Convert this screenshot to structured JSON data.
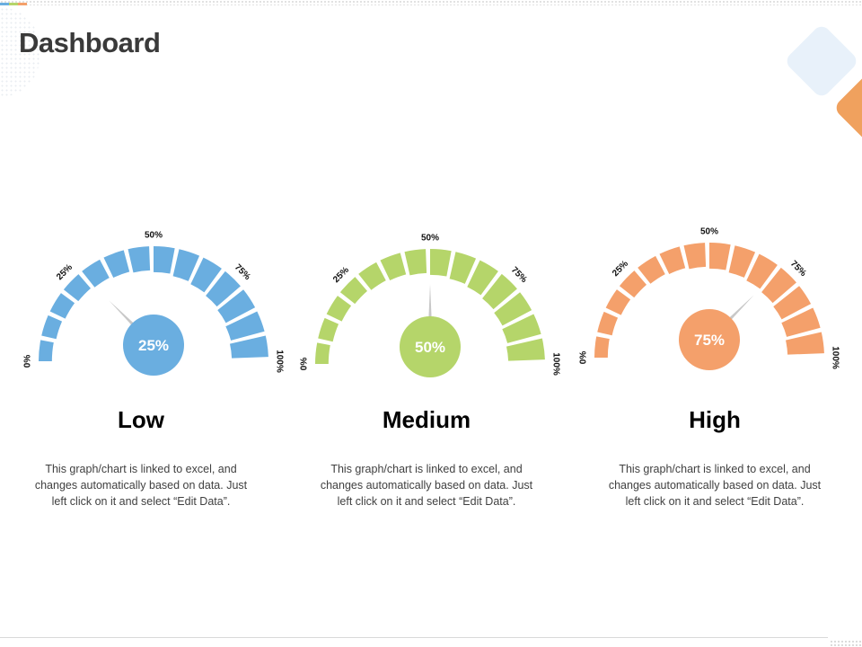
{
  "page": {
    "title": "Dashboard"
  },
  "colors": {
    "blue": "#6aaee0",
    "green": "#b5d56a",
    "orange": "#f4a06b",
    "needle": "#c8c8c8",
    "title": "#3a3a3a"
  },
  "chart_data": [
    {
      "type": "gauge",
      "range": [
        0,
        100
      ],
      "value": 25,
      "value_label": "25%",
      "title": "Low",
      "tick_labels": [
        "0%",
        "25%",
        "50%",
        "75%",
        "100%"
      ],
      "color": "#6aaee0",
      "description": "This graph/chart is linked to excel, and changes automatically based on data. Just left click on it and select “Edit Data”."
    },
    {
      "type": "gauge",
      "range": [
        0,
        100
      ],
      "value": 50,
      "value_label": "50%",
      "title": "Medium",
      "tick_labels": [
        "0%",
        "25%",
        "50%",
        "75%",
        "100%"
      ],
      "color": "#b5d56a",
      "description": "This graph/chart is linked to excel, and changes automatically based on data. Just left click on it and select “Edit Data”."
    },
    {
      "type": "gauge",
      "range": [
        0,
        100
      ],
      "value": 75,
      "value_label": "75%",
      "title": "High",
      "tick_labels": [
        "0%",
        "25%",
        "50%",
        "75%",
        "100%"
      ],
      "color": "#f4a06b",
      "description": "This graph/chart is linked to excel, and changes automatically based on data. Just left click on it and select “Edit Data”."
    }
  ]
}
